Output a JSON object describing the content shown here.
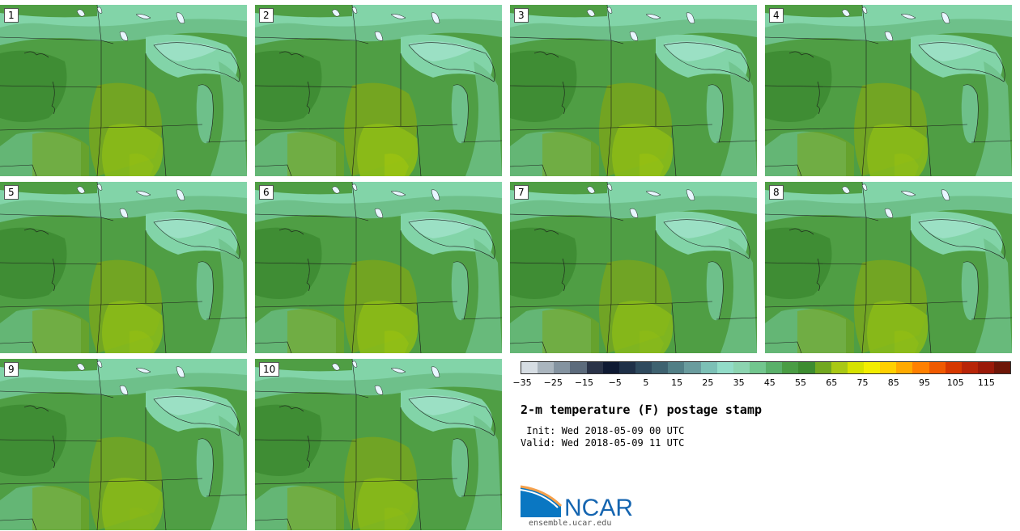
{
  "panels": [
    {
      "label": "1",
      "hot": 1.0
    },
    {
      "label": "2",
      "hot": 1.1
    },
    {
      "label": "3",
      "hot": 1.05
    },
    {
      "label": "4",
      "hot": 1.0
    },
    {
      "label": "5",
      "hot": 1.0
    },
    {
      "label": "6",
      "hot": 1.05
    },
    {
      "label": "7",
      "hot": 0.95
    },
    {
      "label": "8",
      "hot": 1.0
    },
    {
      "label": "9",
      "hot": 0.9
    },
    {
      "label": "10",
      "hot": 0.95
    }
  ],
  "map_colors": {
    "cool_lake": "#82d4a8",
    "light": "#6ec08a",
    "mid": "#4f9e44",
    "dark": "#3f8d34",
    "warm": "#7aa61c",
    "hot": "#8bbb18",
    "yellow": "#c5d800",
    "line": "#1a1a1a"
  },
  "colorbar": {
    "colors": [
      "#d6dde3",
      "#aab5be",
      "#8493a0",
      "#5c6b7c",
      "#2a3348",
      "#0f1a33",
      "#1f3048",
      "#2f4a5e",
      "#3e6270",
      "#527f86",
      "#6a9c9e",
      "#7cc0b6",
      "#92dcc8",
      "#8cd4b0",
      "#72c68e",
      "#5ab06a",
      "#4a9d44",
      "#3d8c30",
      "#72a820",
      "#a9c815",
      "#d6e200",
      "#f2ed00",
      "#ffd000",
      "#ffaa00",
      "#ff8000",
      "#f05a00",
      "#d63800",
      "#b82508",
      "#9a1a0a",
      "#6e1608"
    ],
    "ticks": [
      "−35",
      "−25",
      "−15",
      "−5",
      "5",
      "15",
      "25",
      "35",
      "45",
      "55",
      "65",
      "75",
      "85",
      "95",
      "105",
      "115"
    ]
  },
  "title": "2-m temperature (F) postage stamp",
  "init": " Init: Wed 2018-05-09 00 UTC",
  "valid": "Valid: Wed 2018-05-09 11 UTC",
  "logo_text": "NCAR",
  "url": "ensemble.ucar.edu"
}
